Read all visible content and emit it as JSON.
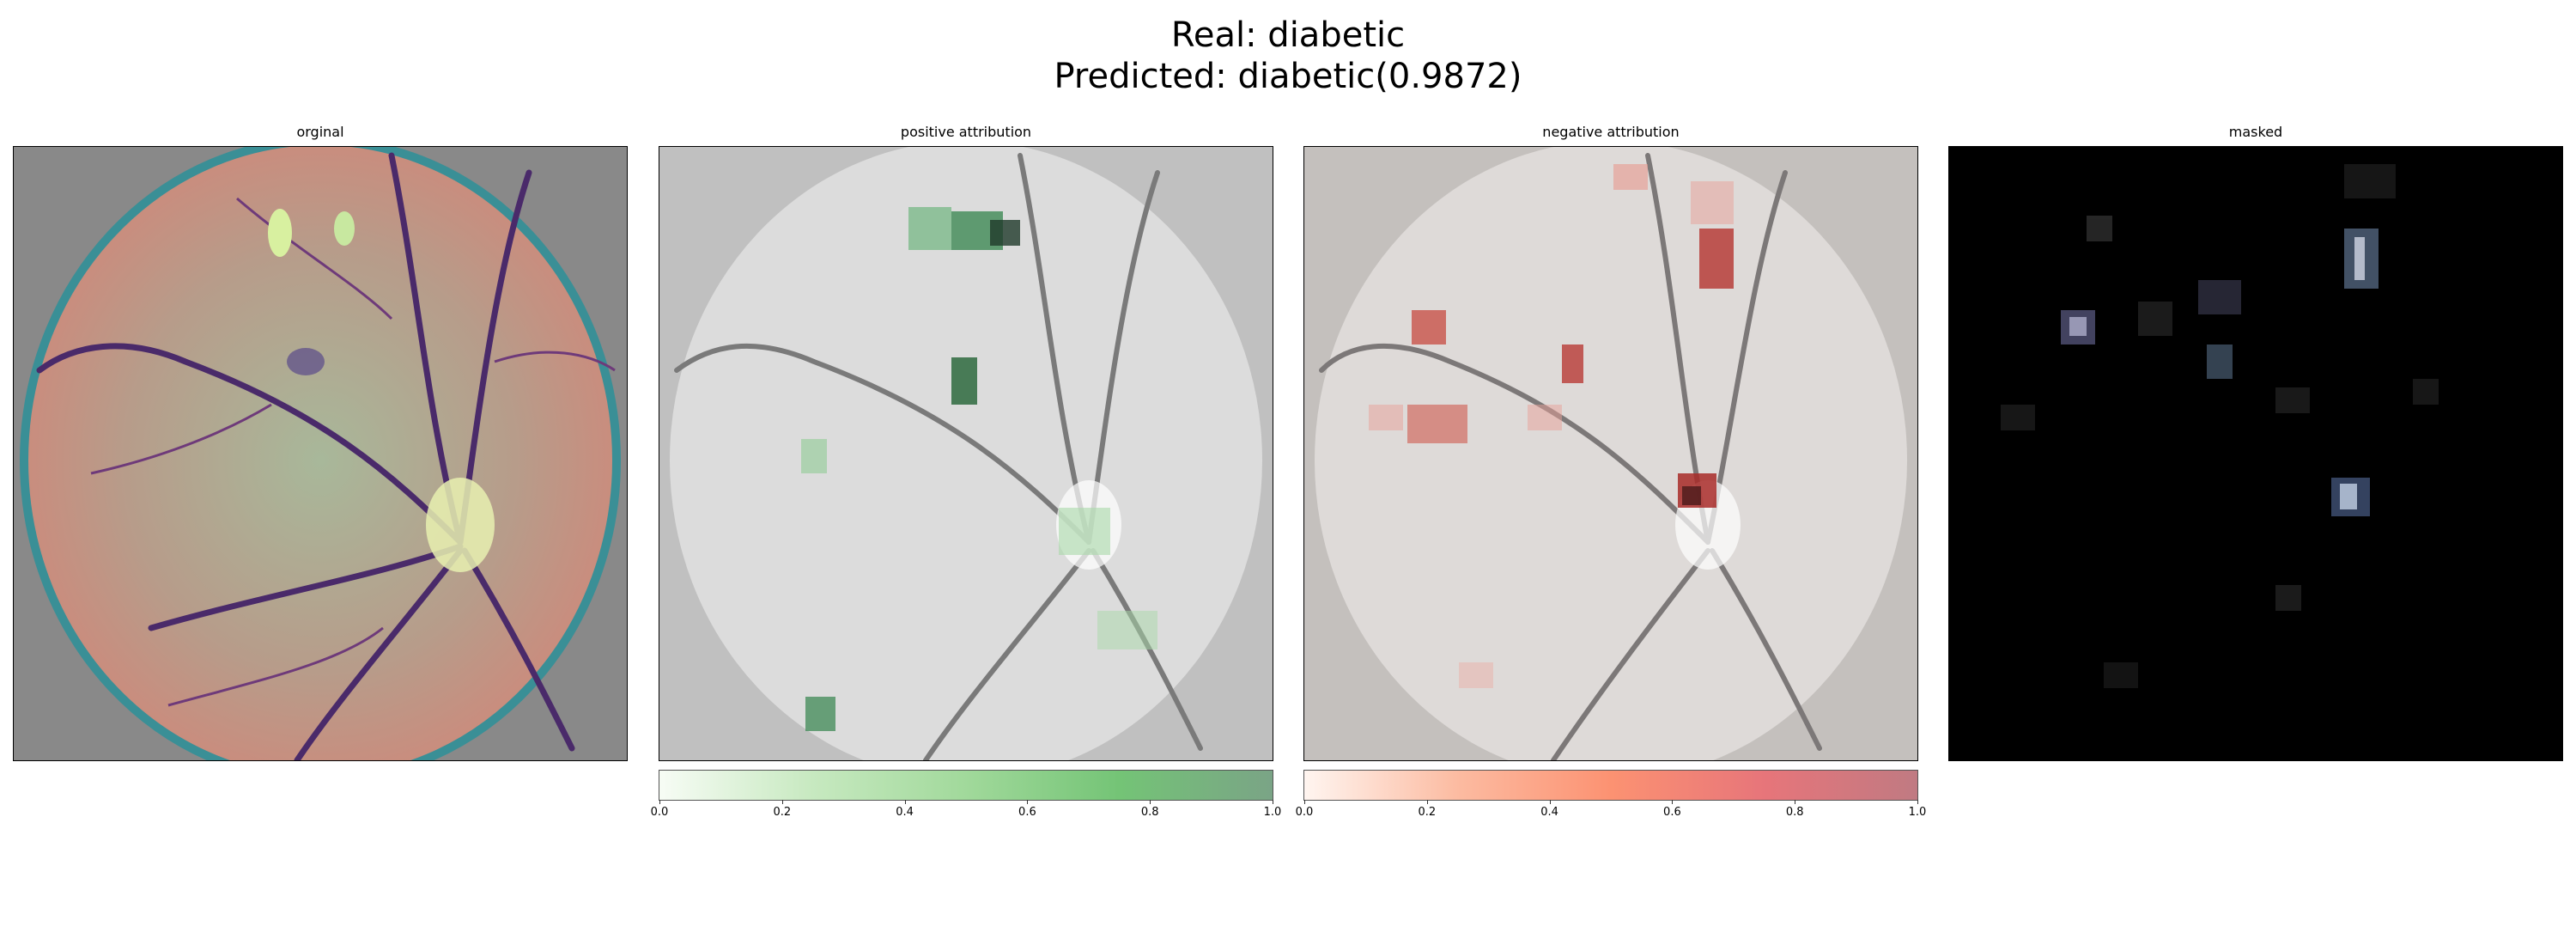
{
  "suptitle": {
    "real": "Real: diabetic",
    "predicted": "Predicted: diabetic(0.9872)"
  },
  "panels": [
    {
      "title": "orginal",
      "image": "color retinal fundus photograph"
    },
    {
      "title": "positive attribution",
      "image": "grayscale fundus with green attribution blocks"
    },
    {
      "title": "negative attribution",
      "image": "grayscale fundus with red attribution blocks"
    },
    {
      "title": "masked",
      "image": "black mask revealing attributed patches"
    }
  ],
  "colorbars": [
    {
      "name": "positive",
      "ticks": [
        "0.0",
        "0.2",
        "0.4",
        "0.6",
        "0.8",
        "1.0"
      ],
      "color_low": "#f7fcf5",
      "color_high": "#7aa486"
    },
    {
      "name": "negative",
      "ticks": [
        "0.0",
        "0.2",
        "0.4",
        "0.6",
        "0.8",
        "1.0"
      ],
      "color_low": "#fff5f0",
      "color_high": "#c07a82"
    }
  ]
}
